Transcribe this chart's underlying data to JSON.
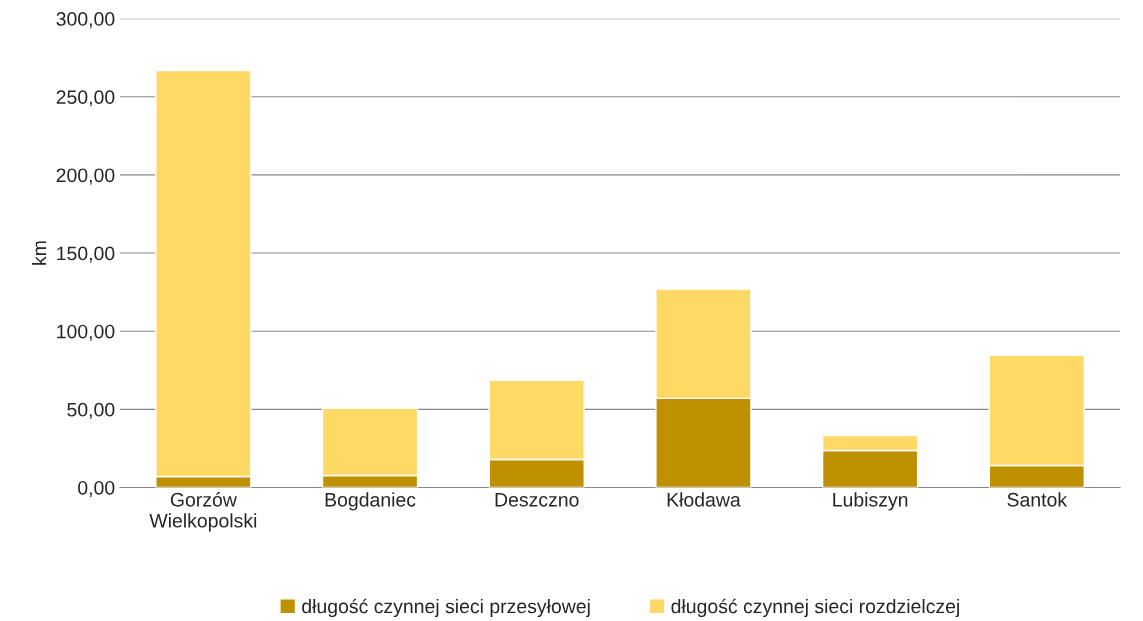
{
  "chart_data": {
    "type": "bar",
    "stacked": true,
    "ylabel": "km",
    "categories": [
      "Gorzów\nWielkopolski",
      "Bogdaniec",
      "Deszczno",
      "Kłodawa",
      "Lubiszyn",
      "Santok"
    ],
    "series": [
      {
        "name": "długość czynnej sieci przesyłowej",
        "color": "#bf9000",
        "values": [
          7.0,
          7.7,
          17.9,
          57.0,
          23.7,
          14.1
        ]
      },
      {
        "name": "długość czynnej sieci rozdzielczej",
        "color": "#ffd966",
        "values": [
          259.7,
          42.9,
          50.7,
          69.9,
          9.6,
          70.5
        ]
      }
    ],
    "ylim": [
      0,
      300
    ],
    "yticks": [
      {
        "value": 0,
        "label": "0,00"
      },
      {
        "value": 50,
        "label": "50,00"
      },
      {
        "value": 100,
        "label": "100,00"
      },
      {
        "value": 150,
        "label": "150,00"
      },
      {
        "value": 200,
        "label": "200,00"
      },
      {
        "value": 250,
        "label": "250,00"
      },
      {
        "value": 300,
        "label": "300,00"
      }
    ],
    "grid": "y",
    "legend": "bottom"
  }
}
